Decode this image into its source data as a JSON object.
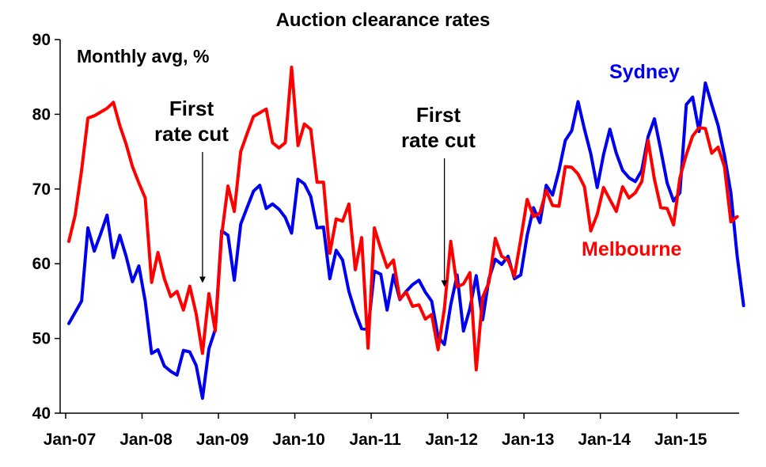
{
  "chart_data": {
    "type": "line",
    "title": "Auction clearance rates",
    "ylabel": "Monthly avg, %",
    "xlabel": "",
    "ylim": [
      40,
      90
    ],
    "yticks": [
      "40",
      "50",
      "60",
      "70",
      "80",
      "90"
    ],
    "xticks": [
      {
        "label": "Jan-07",
        "index": 0
      },
      {
        "label": "Jan-08",
        "index": 12
      },
      {
        "label": "Jan-09",
        "index": 24
      },
      {
        "label": "Jan-10",
        "index": 36
      },
      {
        "label": "Jan-11",
        "index": 48
      },
      {
        "label": "Jan-12",
        "index": 60
      },
      {
        "label": "Jan-13",
        "index": 72
      },
      {
        "label": "Jan-14",
        "index": 84
      },
      {
        "label": "Jan-15",
        "index": 96
      }
    ],
    "x_count": 106,
    "series": [
      {
        "name": "Sydney",
        "color": "#0000ee",
        "values": [
          52,
          53.5,
          55,
          64.8,
          61.7,
          64,
          66.5,
          60.8,
          63.8,
          61,
          57.6,
          59.7,
          55,
          48,
          48.5,
          46.3,
          45.6,
          45.1,
          48.4,
          48.2,
          46.4,
          42,
          48.6,
          51.2,
          64.4,
          63.8,
          57.8,
          65.3,
          67.5,
          69.7,
          70.5,
          67.4,
          68,
          67.3,
          66.2,
          64.1,
          71.3,
          70.7,
          69,
          64.8,
          64.9,
          58,
          61.8,
          60.5,
          56.3,
          53.5,
          51.3,
          51.2,
          59,
          58.6,
          53.8,
          58.5,
          55.2,
          56.3,
          57.2,
          57.8,
          56.2,
          55,
          50.2,
          49.2,
          54.5,
          58.5,
          51,
          54,
          58.4,
          52.5,
          58,
          60.6,
          59.9,
          61,
          58,
          58.5,
          63.8,
          67.5,
          65.5,
          70.5,
          69.2,
          72.5,
          76.5,
          77.8,
          81.7,
          78,
          74.7,
          70.2,
          74.6,
          78,
          74.8,
          72.5,
          71.5,
          71,
          72.5,
          77,
          79.4,
          75.2,
          70.8,
          68.4,
          69.5,
          81.3,
          82.3,
          77.7,
          84.2,
          81.3,
          78.5,
          74.5,
          69.5,
          61,
          54.4
        ]
      },
      {
        "name": "Melbourne",
        "color": "#ff0000",
        "values": [
          63,
          66.5,
          72.5,
          79.5,
          79.8,
          80.3,
          80.8,
          81.6,
          78.5,
          76,
          73,
          70.8,
          68.8,
          57.5,
          61.5,
          58,
          55.6,
          56.3,
          53.8,
          57,
          53.3,
          48,
          56,
          51,
          63.8,
          70.4,
          67,
          75,
          77.4,
          79.7,
          80.2,
          80.7,
          76.2,
          75.5,
          76.2,
          86.3,
          75.8,
          78.7,
          78,
          70.9,
          70.9,
          61.4,
          66,
          65.7,
          68,
          59.2,
          63.5,
          48.7,
          64.8,
          62,
          59.5,
          60.5,
          55.3,
          56.2,
          54.3,
          54.5,
          52.6,
          53.2,
          48.5,
          54,
          63,
          56.9,
          57.3,
          58.8,
          45.8,
          55.5,
          57.5,
          63.4,
          61,
          60.5,
          58.3,
          63.3,
          68.6,
          66.3,
          66.8,
          69.8,
          67.8,
          67.7,
          73,
          72.9,
          72,
          70.3,
          64.4,
          66.6,
          70.2,
          68.6,
          67,
          70.3,
          68.8,
          69.5,
          71,
          76.5,
          71.3,
          67.5,
          67.4,
          65.2,
          71.5,
          74.6,
          77.1,
          78.2,
          78.1,
          74.8,
          75.6,
          73,
          65.6,
          66.3
        ]
      }
    ],
    "legend": [
      {
        "label": "Sydney",
        "series": "Sydney"
      },
      {
        "label": "Melbourne",
        "series": "Melbourne"
      }
    ],
    "annotations": [
      {
        "lines": [
          "First",
          "rate cut"
        ],
        "x_index": 21,
        "y_value": 57
      },
      {
        "lines": [
          "First",
          "rate cut"
        ],
        "x_index": 59,
        "y_value": 56.5
      }
    ]
  }
}
